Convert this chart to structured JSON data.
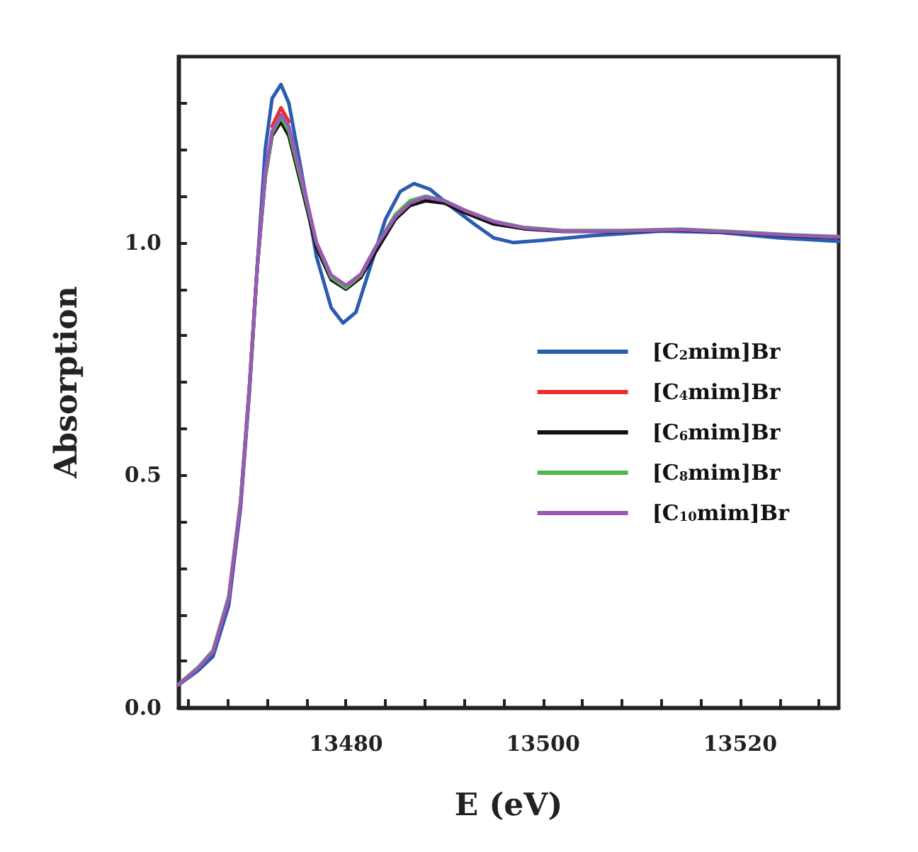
{
  "chart_data": {
    "type": "line",
    "xlabel": "E (eV)",
    "ylabel": "Absorption",
    "xlim": [
      13463,
      13530
    ],
    "xticks": [
      {
        "value": 13464,
        "label": null
      },
      {
        "value": 13468,
        "label": null
      },
      {
        "value": 13472,
        "label": null
      },
      {
        "value": 13476,
        "label": null
      },
      13480,
      {
        "value": 13484,
        "label": null
      },
      {
        "value": 13488,
        "label": null
      },
      {
        "value": 13492,
        "label": null
      },
      {
        "value": 13496,
        "label": null
      },
      13500,
      {
        "value": 13504,
        "label": null
      },
      {
        "value": 13508,
        "label": null
      },
      {
        "value": 13512,
        "label": null
      },
      {
        "value": 13516,
        "label": null
      },
      13520,
      {
        "value": 13524,
        "label": null
      },
      {
        "value": 13528,
        "label": null
      }
    ],
    "ylim": [
      0,
      1.4
    ],
    "yticks": [
      {
        "value": 0,
        "label": "0.0"
      },
      {
        "value": 0.1,
        "label": null
      },
      {
        "value": 0.2,
        "label": null
      },
      {
        "value": 0.3,
        "label": null
      },
      {
        "value": 0.4,
        "label": null
      },
      0.5,
      {
        "value": 0.6,
        "label": null
      },
      {
        "value": 0.7,
        "label": null
      },
      {
        "value": 0.8,
        "label": null
      },
      {
        "value": 0.9,
        "label": null
      },
      {
        "value": 1,
        "label": "1.0"
      },
      {
        "value": 1.1,
        "label": null
      },
      {
        "value": 1.2,
        "label": null
      },
      {
        "value": 1.3,
        "label": null
      }
    ],
    "grid": false,
    "legend": "right",
    "marker": "none",
    "line_style": "solid",
    "x": [
      13463,
      13465,
      13466.5,
      13468.1,
      13469.3,
      13470.2,
      13471,
      13471.8,
      13472.5,
      13473.4,
      13474.2,
      13475.5,
      13477,
      13478.5,
      13480,
      13481.5,
      13483,
      13485,
      13486.5,
      13488.1,
      13490,
      13492,
      13495,
      13498,
      13502,
      13508,
      13514,
      13520,
      13525,
      13530
    ],
    "series": [
      {
        "name": "[C$_{2}$mim]Br",
        "color": "#2a5db0",
        "x": [
          13463,
          13465,
          13466.5,
          13468.1,
          13469.3,
          13470.2,
          13471,
          13471.8,
          13472.5,
          13473.4,
          13474.2,
          13475.5,
          13477,
          13478.5,
          13479.7,
          13481,
          13482.5,
          13484,
          13485.5,
          13486.9,
          13488.5,
          13490.5,
          13493,
          13495,
          13497,
          13500,
          13505,
          13512,
          13518,
          13524,
          13530
        ],
        "values": [
          0.049,
          0.08,
          0.11,
          0.22,
          0.43,
          0.68,
          0.95,
          1.2,
          1.31,
          1.34,
          1.3,
          1.15,
          0.97,
          0.86,
          0.827,
          0.85,
          0.95,
          1.05,
          1.11,
          1.127,
          1.115,
          1.08,
          1.04,
          1.01,
          1.0,
          1.005,
          1.015,
          1.025,
          1.022,
          1.01,
          1.003
        ]
      },
      {
        "name": "[C$_{4}$mim]Br",
        "color": "#e8302c",
        "values": [
          null,
          null,
          null,
          null,
          null,
          null,
          null,
          null,
          1.25,
          1.29,
          1.26,
          null,
          null,
          null,
          null,
          null,
          null,
          null,
          null,
          null,
          null,
          null,
          null,
          null,
          null,
          null,
          null,
          null,
          null,
          null
        ]
      },
      {
        "name": "[C$_{6}$mim]Br",
        "color": "#111111",
        "values": [
          0.049,
          0.085,
          0.12,
          0.235,
          0.44,
          0.69,
          0.95,
          1.14,
          1.23,
          1.26,
          1.23,
          1.12,
          0.99,
          0.92,
          0.9,
          0.925,
          0.98,
          1.05,
          1.08,
          1.09,
          1.085,
          1.065,
          1.04,
          1.03,
          1.024,
          1.024,
          1.027,
          1.021,
          1.015,
          1.011
        ]
      },
      {
        "name": "[C$_{8}$mim]Br",
        "color": "#4cb848",
        "values": [
          0.05,
          0.087,
          0.123,
          0.24,
          0.445,
          0.69,
          0.95,
          1.14,
          1.235,
          1.27,
          1.24,
          1.13,
          1.0,
          0.925,
          0.903,
          0.93,
          0.99,
          1.06,
          1.09,
          1.1,
          1.09,
          1.07,
          1.046,
          1.033,
          1.026,
          1.026,
          1.029,
          1.023,
          1.017,
          1.013
        ]
      },
      {
        "name": "[C$_{10}$mim]Br",
        "color": "#9b59b6",
        "values": [
          0.049,
          0.085,
          0.12,
          0.235,
          0.44,
          0.69,
          0.95,
          1.15,
          1.24,
          1.275,
          1.25,
          1.14,
          1.0,
          0.93,
          0.908,
          0.932,
          0.99,
          1.055,
          1.085,
          1.098,
          1.09,
          1.07,
          1.045,
          1.032,
          1.025,
          1.025,
          1.028,
          1.022,
          1.016,
          1.012
        ]
      }
    ]
  }
}
